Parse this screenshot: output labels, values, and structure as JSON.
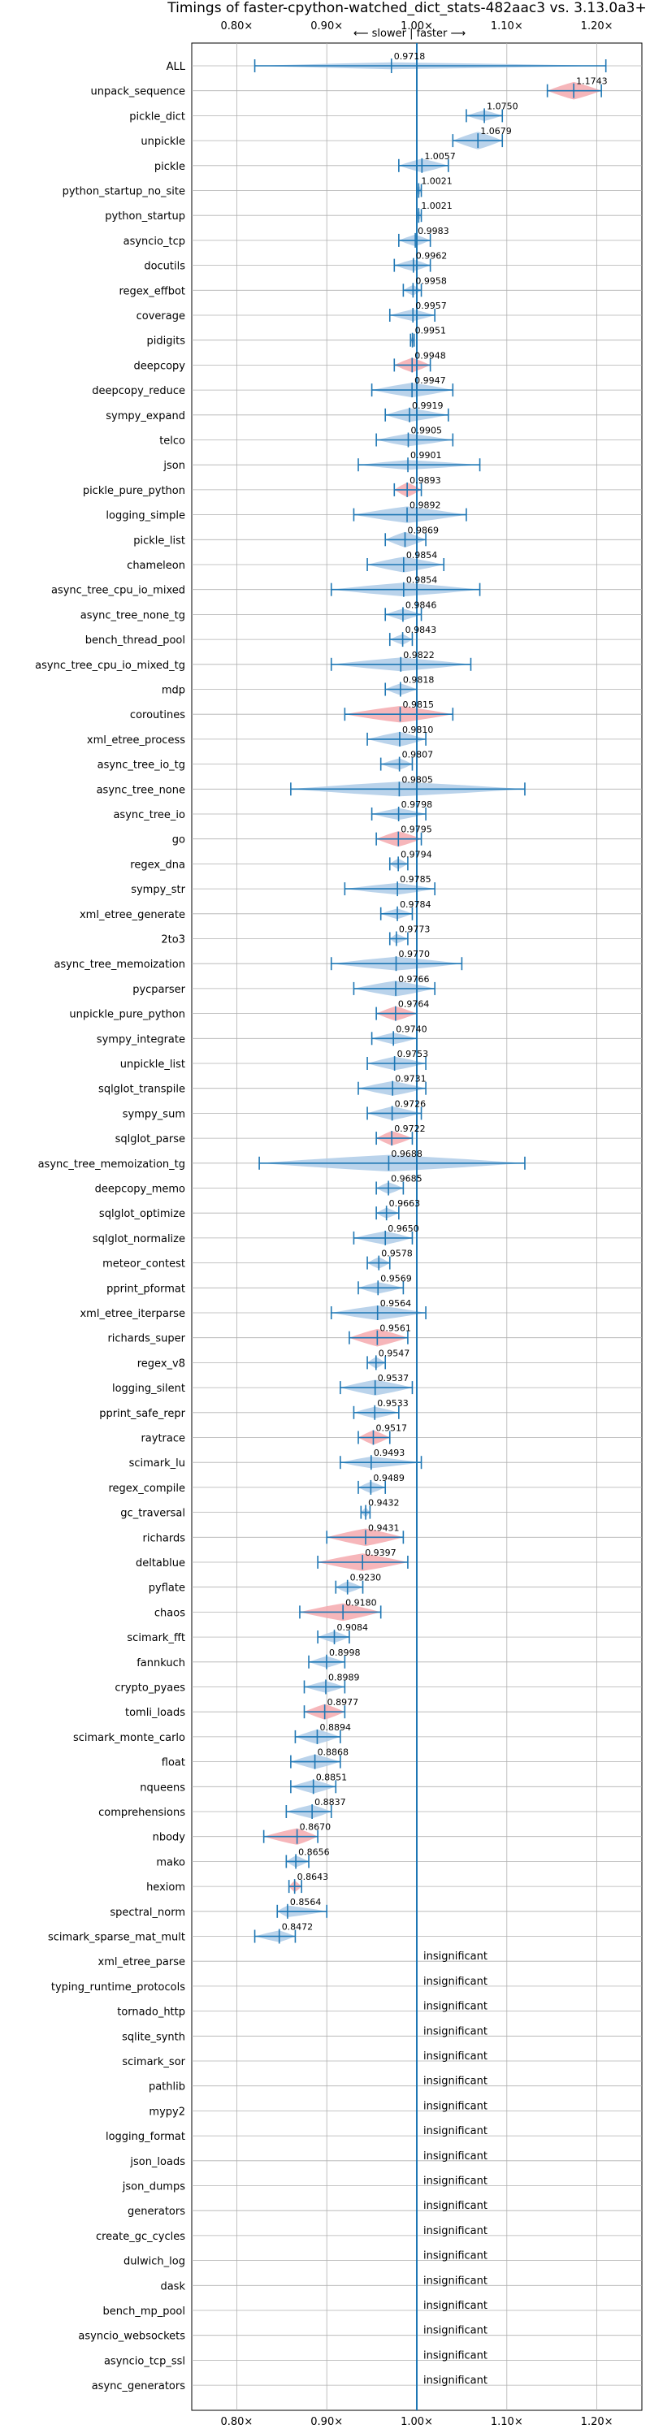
{
  "chart_data": {
    "type": "violin",
    "title": "Timings of faster-cpython-watched_dict_stats-482aac3 vs. 3.13.0a3+",
    "direction_label": "⟵ slower | faster ⟶",
    "x_ticks": [
      0.8,
      0.9,
      1.0,
      1.1,
      1.2
    ],
    "x_tick_labels": [
      "0.80×",
      "0.90×",
      "1.00×",
      "1.10×",
      "1.20×"
    ],
    "xlim": [
      0.75,
      1.25
    ],
    "colors": {
      "faster": "#aecbe8",
      "slower": "#f5a9ae",
      "line": "#1f77b4",
      "grid": "#b0b0b0"
    },
    "insignificant_label": "insignificant",
    "benchmarks": [
      {
        "name": "ALL",
        "value": 0.9718,
        "value_label": "0.9718",
        "min": 0.82,
        "max": 1.21,
        "width": 0.35,
        "color": "faster"
      },
      {
        "name": "unpack_sequence",
        "value": 1.1743,
        "value_label": "1.1743",
        "min": 1.145,
        "max": 1.205,
        "width": 0.9,
        "color": "slower"
      },
      {
        "name": "pickle_dict",
        "value": 1.075,
        "value_label": "1.0750",
        "min": 1.055,
        "max": 1.095,
        "width": 0.55,
        "color": "faster"
      },
      {
        "name": "unpickle",
        "value": 1.0679,
        "value_label": "1.0679",
        "min": 1.04,
        "max": 1.095,
        "width": 0.9,
        "color": "faster"
      },
      {
        "name": "pickle",
        "value": 1.0057,
        "value_label": "1.0057",
        "min": 0.98,
        "max": 1.035,
        "width": 0.7,
        "color": "faster"
      },
      {
        "name": "python_startup_no_site",
        "value": 1.0021,
        "value_label": "1.0021",
        "min": 1.0,
        "max": 1.005,
        "width": 0.6,
        "color": "faster"
      },
      {
        "name": "python_startup",
        "value": 1.0021,
        "value_label": "1.0021",
        "min": 1.0,
        "max": 1.005,
        "width": 0.6,
        "color": "faster"
      },
      {
        "name": "asyncio_tcp",
        "value": 0.9983,
        "value_label": "0.9983",
        "min": 0.98,
        "max": 1.015,
        "width": 0.6,
        "color": "faster"
      },
      {
        "name": "docutils",
        "value": 0.9962,
        "value_label": "0.9962",
        "min": 0.975,
        "max": 1.015,
        "width": 0.6,
        "color": "faster"
      },
      {
        "name": "regex_effbot",
        "value": 0.9958,
        "value_label": "0.9958",
        "min": 0.985,
        "max": 1.005,
        "width": 0.55,
        "color": "faster"
      },
      {
        "name": "coverage",
        "value": 0.9957,
        "value_label": "0.9957",
        "min": 0.97,
        "max": 1.02,
        "width": 0.6,
        "color": "faster"
      },
      {
        "name": "pidigits",
        "value": 0.9951,
        "value_label": "0.9951",
        "min": 0.993,
        "max": 0.997,
        "width": 0.5,
        "color": "faster"
      },
      {
        "name": "deepcopy",
        "value": 0.9948,
        "value_label": "0.9948",
        "min": 0.975,
        "max": 1.015,
        "width": 0.75,
        "color": "slower"
      },
      {
        "name": "deepcopy_reduce",
        "value": 0.9947,
        "value_label": "0.9947",
        "min": 0.95,
        "max": 1.04,
        "width": 0.75,
        "color": "faster"
      },
      {
        "name": "sympy_expand",
        "value": 0.9919,
        "value_label": "0.9919",
        "min": 0.965,
        "max": 1.035,
        "width": 0.7,
        "color": "faster"
      },
      {
        "name": "telco",
        "value": 0.9905,
        "value_label": "0.9905",
        "min": 0.955,
        "max": 1.04,
        "width": 0.65,
        "color": "faster"
      },
      {
        "name": "json",
        "value": 0.9901,
        "value_label": "0.9901",
        "min": 0.935,
        "max": 1.07,
        "width": 0.5,
        "color": "faster"
      },
      {
        "name": "pickle_pure_python",
        "value": 0.9893,
        "value_label": "0.9893",
        "min": 0.975,
        "max": 1.005,
        "width": 0.75,
        "color": "slower"
      },
      {
        "name": "logging_simple",
        "value": 0.9892,
        "value_label": "0.9892",
        "min": 0.93,
        "max": 1.055,
        "width": 0.85,
        "color": "faster"
      },
      {
        "name": "pickle_list",
        "value": 0.9869,
        "value_label": "0.9869",
        "min": 0.965,
        "max": 1.01,
        "width": 0.8,
        "color": "faster"
      },
      {
        "name": "chameleon",
        "value": 0.9854,
        "value_label": "0.9854",
        "min": 0.945,
        "max": 1.03,
        "width": 0.8,
        "color": "faster"
      },
      {
        "name": "async_tree_cpu_io_mixed",
        "value": 0.9854,
        "value_label": "0.9854",
        "min": 0.905,
        "max": 1.07,
        "width": 0.7,
        "color": "faster"
      },
      {
        "name": "async_tree_none_tg",
        "value": 0.9846,
        "value_label": "0.9846",
        "min": 0.965,
        "max": 1.005,
        "width": 0.6,
        "color": "faster"
      },
      {
        "name": "bench_thread_pool",
        "value": 0.9843,
        "value_label": "0.9843",
        "min": 0.97,
        "max": 0.995,
        "width": 0.55,
        "color": "faster"
      },
      {
        "name": "async_tree_cpu_io_mixed_tg",
        "value": 0.9822,
        "value_label": "0.9822",
        "min": 0.905,
        "max": 1.06,
        "width": 0.7,
        "color": "faster"
      },
      {
        "name": "mdp",
        "value": 0.9818,
        "value_label": "0.9818",
        "min": 0.965,
        "max": 1.0,
        "width": 0.6,
        "color": "faster"
      },
      {
        "name": "coroutines",
        "value": 0.9815,
        "value_label": "0.9815",
        "min": 0.92,
        "max": 1.04,
        "width": 0.85,
        "color": "slower"
      },
      {
        "name": "xml_etree_process",
        "value": 0.981,
        "value_label": "0.9810",
        "min": 0.945,
        "max": 1.01,
        "width": 0.75,
        "color": "faster"
      },
      {
        "name": "async_tree_io_tg",
        "value": 0.9807,
        "value_label": "0.9807",
        "min": 0.96,
        "max": 0.995,
        "width": 0.6,
        "color": "faster"
      },
      {
        "name": "async_tree_none",
        "value": 0.9805,
        "value_label": "0.9805",
        "min": 0.86,
        "max": 1.12,
        "width": 0.75,
        "color": "faster"
      },
      {
        "name": "async_tree_io",
        "value": 0.9798,
        "value_label": "0.9798",
        "min": 0.95,
        "max": 1.01,
        "width": 0.6,
        "color": "faster"
      },
      {
        "name": "go",
        "value": 0.9795,
        "value_label": "0.9795",
        "min": 0.955,
        "max": 1.005,
        "width": 0.8,
        "color": "slower"
      },
      {
        "name": "regex_dna",
        "value": 0.9794,
        "value_label": "0.9794",
        "min": 0.97,
        "max": 0.99,
        "width": 0.55,
        "color": "faster"
      },
      {
        "name": "sympy_str",
        "value": 0.9785,
        "value_label": "0.9785",
        "min": 0.92,
        "max": 1.02,
        "width": 0.6,
        "color": "faster"
      },
      {
        "name": "xml_etree_generate",
        "value": 0.9784,
        "value_label": "0.9784",
        "min": 0.96,
        "max": 0.995,
        "width": 0.55,
        "color": "faster"
      },
      {
        "name": "2to3",
        "value": 0.9773,
        "value_label": "0.9773",
        "min": 0.97,
        "max": 0.99,
        "width": 0.5,
        "color": "faster"
      },
      {
        "name": "async_tree_memoization",
        "value": 0.977,
        "value_label": "0.9770",
        "min": 0.905,
        "max": 1.05,
        "width": 0.7,
        "color": "faster"
      },
      {
        "name": "pycparser",
        "value": 0.9766,
        "value_label": "0.9766",
        "min": 0.93,
        "max": 1.02,
        "width": 0.8,
        "color": "faster"
      },
      {
        "name": "unpickle_pure_python",
        "value": 0.9764,
        "value_label": "0.9764",
        "min": 0.955,
        "max": 1.0,
        "width": 0.75,
        "color": "slower"
      },
      {
        "name": "sympy_integrate",
        "value": 0.974,
        "value_label": "0.9740",
        "min": 0.95,
        "max": 1.0,
        "width": 0.6,
        "color": "faster"
      },
      {
        "name": "unpickle_list",
        "value": 0.9753,
        "value_label": "0.9753",
        "min": 0.945,
        "max": 1.01,
        "width": 0.7,
        "color": "faster"
      },
      {
        "name": "sqlglot_transpile",
        "value": 0.9731,
        "value_label": "0.9731",
        "min": 0.935,
        "max": 1.01,
        "width": 0.75,
        "color": "faster"
      },
      {
        "name": "sympy_sum",
        "value": 0.9726,
        "value_label": "0.9726",
        "min": 0.945,
        "max": 1.005,
        "width": 0.7,
        "color": "faster"
      },
      {
        "name": "sqlglot_parse",
        "value": 0.9722,
        "value_label": "0.9722",
        "min": 0.955,
        "max": 0.995,
        "width": 0.75,
        "color": "slower"
      },
      {
        "name": "async_tree_memoization_tg",
        "value": 0.9688,
        "value_label": "0.9688",
        "min": 0.825,
        "max": 1.12,
        "width": 0.85,
        "color": "faster"
      },
      {
        "name": "deepcopy_memo",
        "value": 0.9685,
        "value_label": "0.9685",
        "min": 0.955,
        "max": 0.985,
        "width": 0.6,
        "color": "faster"
      },
      {
        "name": "sqlglot_optimize",
        "value": 0.9663,
        "value_label": "0.9663",
        "min": 0.955,
        "max": 0.98,
        "width": 0.55,
        "color": "faster"
      },
      {
        "name": "sqlglot_normalize",
        "value": 0.965,
        "value_label": "0.9650",
        "min": 0.93,
        "max": 0.995,
        "width": 0.7,
        "color": "faster"
      },
      {
        "name": "meteor_contest",
        "value": 0.9578,
        "value_label": "0.9578",
        "min": 0.945,
        "max": 0.97,
        "width": 0.6,
        "color": "faster"
      },
      {
        "name": "pprint_pformat",
        "value": 0.9569,
        "value_label": "0.9569",
        "min": 0.935,
        "max": 0.985,
        "width": 0.6,
        "color": "faster"
      },
      {
        "name": "xml_etree_iterparse",
        "value": 0.9564,
        "value_label": "0.9564",
        "min": 0.905,
        "max": 1.01,
        "width": 0.75,
        "color": "faster"
      },
      {
        "name": "richards_super",
        "value": 0.9561,
        "value_label": "0.9561",
        "min": 0.925,
        "max": 0.99,
        "width": 0.9,
        "color": "slower"
      },
      {
        "name": "regex_v8",
        "value": 0.9547,
        "value_label": "0.9547",
        "min": 0.945,
        "max": 0.965,
        "width": 0.6,
        "color": "faster"
      },
      {
        "name": "logging_silent",
        "value": 0.9537,
        "value_label": "0.9537",
        "min": 0.915,
        "max": 0.995,
        "width": 0.8,
        "color": "faster"
      },
      {
        "name": "pprint_safe_repr",
        "value": 0.9533,
        "value_label": "0.9533",
        "min": 0.93,
        "max": 0.98,
        "width": 0.6,
        "color": "faster"
      },
      {
        "name": "raytrace",
        "value": 0.9517,
        "value_label": "0.9517",
        "min": 0.935,
        "max": 0.97,
        "width": 0.75,
        "color": "slower"
      },
      {
        "name": "scimark_lu",
        "value": 0.9493,
        "value_label": "0.9493",
        "min": 0.915,
        "max": 1.005,
        "width": 0.6,
        "color": "faster"
      },
      {
        "name": "regex_compile",
        "value": 0.9489,
        "value_label": "0.9489",
        "min": 0.935,
        "max": 0.965,
        "width": 0.6,
        "color": "faster"
      },
      {
        "name": "gc_traversal",
        "value": 0.9432,
        "value_label": "0.9432",
        "min": 0.938,
        "max": 0.948,
        "width": 0.5,
        "color": "faster"
      },
      {
        "name": "richards",
        "value": 0.9431,
        "value_label": "0.9431",
        "min": 0.9,
        "max": 0.985,
        "width": 0.9,
        "color": "slower"
      },
      {
        "name": "deltablue",
        "value": 0.9397,
        "value_label": "0.9397",
        "min": 0.89,
        "max": 0.99,
        "width": 0.9,
        "color": "slower"
      },
      {
        "name": "pyflate",
        "value": 0.923,
        "value_label": "0.9230",
        "min": 0.91,
        "max": 0.94,
        "width": 0.6,
        "color": "faster"
      },
      {
        "name": "chaos",
        "value": 0.918,
        "value_label": "0.9180",
        "min": 0.87,
        "max": 0.96,
        "width": 0.9,
        "color": "slower"
      },
      {
        "name": "scimark_fft",
        "value": 0.9084,
        "value_label": "0.9084",
        "min": 0.89,
        "max": 0.925,
        "width": 0.6,
        "color": "faster"
      },
      {
        "name": "fannkuch",
        "value": 0.8998,
        "value_label": "0.8998",
        "min": 0.88,
        "max": 0.92,
        "width": 0.6,
        "color": "faster"
      },
      {
        "name": "crypto_pyaes",
        "value": 0.8989,
        "value_label": "0.8989",
        "min": 0.875,
        "max": 0.92,
        "width": 0.6,
        "color": "faster"
      },
      {
        "name": "tomli_loads",
        "value": 0.8977,
        "value_label": "0.8977",
        "min": 0.875,
        "max": 0.92,
        "width": 0.8,
        "color": "slower"
      },
      {
        "name": "scimark_monte_carlo",
        "value": 0.8894,
        "value_label": "0.8894",
        "min": 0.865,
        "max": 0.915,
        "width": 0.75,
        "color": "faster"
      },
      {
        "name": "float",
        "value": 0.8868,
        "value_label": "0.8868",
        "min": 0.86,
        "max": 0.915,
        "width": 0.75,
        "color": "faster"
      },
      {
        "name": "nqueens",
        "value": 0.8851,
        "value_label": "0.8851",
        "min": 0.86,
        "max": 0.91,
        "width": 0.7,
        "color": "faster"
      },
      {
        "name": "comprehensions",
        "value": 0.8837,
        "value_label": "0.8837",
        "min": 0.855,
        "max": 0.905,
        "width": 0.7,
        "color": "faster"
      },
      {
        "name": "nbody",
        "value": 0.867,
        "value_label": "0.8670",
        "min": 0.83,
        "max": 0.89,
        "width": 0.85,
        "color": "slower"
      },
      {
        "name": "mako",
        "value": 0.8656,
        "value_label": "0.8656",
        "min": 0.855,
        "max": 0.88,
        "width": 0.6,
        "color": "faster"
      },
      {
        "name": "hexiom",
        "value": 0.8643,
        "value_label": "0.8643",
        "min": 0.858,
        "max": 0.872,
        "width": 0.6,
        "color": "slower"
      },
      {
        "name": "spectral_norm",
        "value": 0.8564,
        "value_label": "0.8564",
        "min": 0.845,
        "max": 0.9,
        "width": 0.6,
        "color": "faster"
      },
      {
        "name": "scimark_sparse_mat_mult",
        "value": 0.8472,
        "value_label": "0.8472",
        "min": 0.82,
        "max": 0.865,
        "width": 0.6,
        "color": "faster"
      },
      {
        "name": "xml_etree_parse",
        "insignificant": true
      },
      {
        "name": "typing_runtime_protocols",
        "insignificant": true
      },
      {
        "name": "tornado_http",
        "insignificant": true
      },
      {
        "name": "sqlite_synth",
        "insignificant": true
      },
      {
        "name": "scimark_sor",
        "insignificant": true
      },
      {
        "name": "pathlib",
        "insignificant": true
      },
      {
        "name": "mypy2",
        "insignificant": true
      },
      {
        "name": "logging_format",
        "insignificant": true
      },
      {
        "name": "json_loads",
        "insignificant": true
      },
      {
        "name": "json_dumps",
        "insignificant": true
      },
      {
        "name": "generators",
        "insignificant": true
      },
      {
        "name": "create_gc_cycles",
        "insignificant": true
      },
      {
        "name": "dulwich_log",
        "insignificant": true
      },
      {
        "name": "dask",
        "insignificant": true
      },
      {
        "name": "bench_mp_pool",
        "insignificant": true
      },
      {
        "name": "asyncio_websockets",
        "insignificant": true
      },
      {
        "name": "asyncio_tcp_ssl",
        "insignificant": true
      },
      {
        "name": "async_generators",
        "insignificant": true
      }
    ]
  }
}
